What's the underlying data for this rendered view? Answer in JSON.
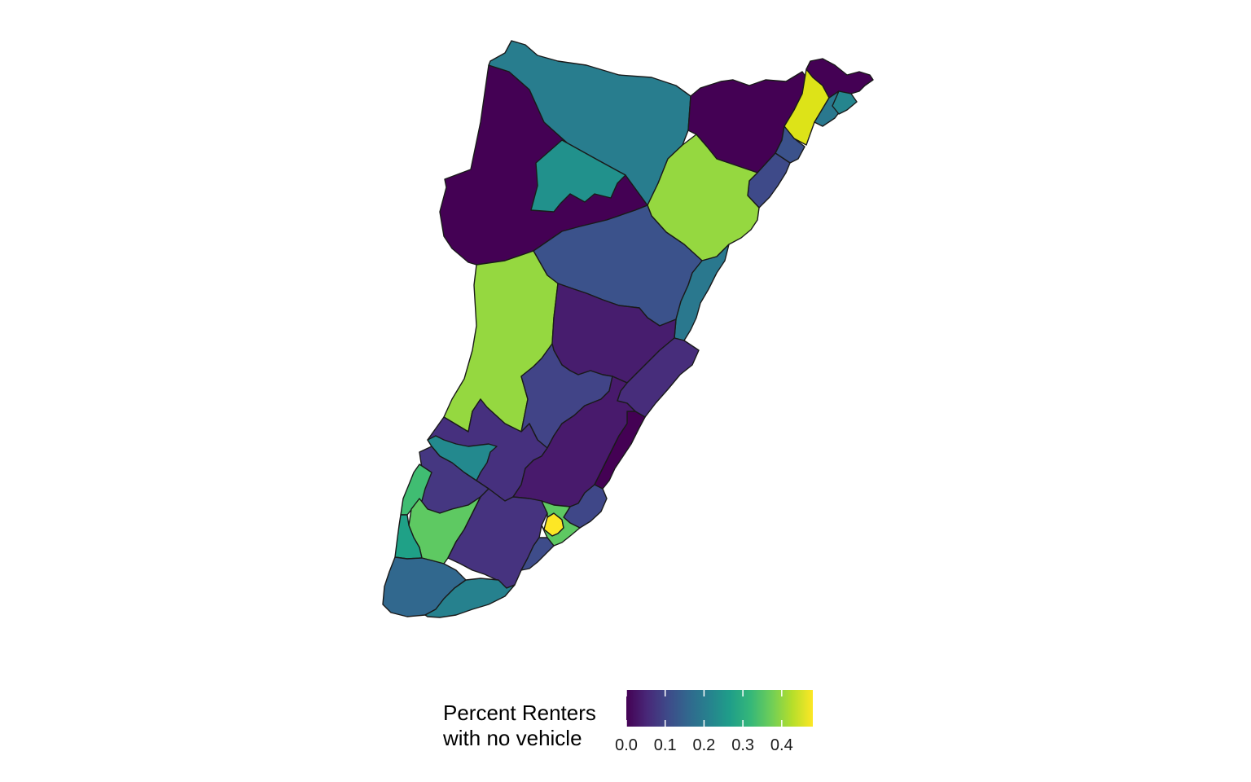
{
  "legend": {
    "title_line1": "Percent Renters",
    "title_line2": "with no vehicle",
    "ticks": [
      "0.0",
      "0.1",
      "0.2",
      "0.3",
      "0.4"
    ],
    "tick_values": [
      0.0,
      0.1,
      0.2,
      0.3,
      0.4
    ],
    "range": [
      0.0,
      0.48
    ],
    "palette": "viridis",
    "colors": [
      "#440154",
      "#482878",
      "#3e4a89",
      "#31688e",
      "#26828e",
      "#1f9e89",
      "#35b779",
      "#6ece58",
      "#b5de2b",
      "#fde725"
    ]
  },
  "tracts": [
    {
      "id": "north-west",
      "value": 0.0,
      "color": "#440154"
    },
    {
      "id": "north-center",
      "value": 0.2,
      "color": "#287d8e"
    },
    {
      "id": "north-inner",
      "value": 0.26,
      "color": "#21918c"
    },
    {
      "id": "north-east-1",
      "value": 0.0,
      "color": "#440154"
    },
    {
      "id": "north-east-yellow",
      "value": 0.47,
      "color": "#dde318"
    },
    {
      "id": "northeast-tip",
      "value": 0.0,
      "color": "#440154"
    },
    {
      "id": "northeast-coast-a",
      "value": 0.2,
      "color": "#2a788e"
    },
    {
      "id": "northeast-coast-b",
      "value": 0.24,
      "color": "#25858e"
    },
    {
      "id": "east-coast-1",
      "value": 0.12,
      "color": "#3b528b"
    },
    {
      "id": "east-coast-2",
      "value": 0.15,
      "color": "#3e4a89"
    },
    {
      "id": "east-green",
      "value": 0.38,
      "color": "#95d840"
    },
    {
      "id": "central-blue",
      "value": 0.14,
      "color": "#3b528b"
    },
    {
      "id": "east-coast-3",
      "value": 0.2,
      "color": "#2a788e"
    },
    {
      "id": "west-green",
      "value": 0.38,
      "color": "#95d840"
    },
    {
      "id": "central-purple",
      "value": 0.05,
      "color": "#471d6e"
    },
    {
      "id": "central-blue-2",
      "value": 0.11,
      "color": "#414487"
    },
    {
      "id": "east-coast-4",
      "value": 0.08,
      "color": "#472d7b"
    },
    {
      "id": "south-purple-a",
      "value": 0.07,
      "color": "#46307e"
    },
    {
      "id": "south-purple-b",
      "value": 0.05,
      "color": "#481a6c"
    },
    {
      "id": "coast-dark",
      "value": 0.0,
      "color": "#440154"
    },
    {
      "id": "sw-teal",
      "value": 0.22,
      "color": "#23898e"
    },
    {
      "id": "sw-purple",
      "value": 0.08,
      "color": "#453781"
    },
    {
      "id": "sw-green-strip",
      "value": 0.31,
      "color": "#40bd72"
    },
    {
      "id": "sw-green",
      "value": 0.34,
      "color": "#5ec962"
    },
    {
      "id": "sw-teal-2",
      "value": 0.26,
      "color": "#1fa187"
    },
    {
      "id": "south-purple-c",
      "value": 0.08,
      "color": "#46337f"
    },
    {
      "id": "south-coast-blue",
      "value": 0.13,
      "color": "#3f4788"
    },
    {
      "id": "south-yellow",
      "value": 0.48,
      "color": "#fde725"
    },
    {
      "id": "south-green",
      "value": 0.34,
      "color": "#5ec962"
    },
    {
      "id": "south-blue",
      "value": 0.12,
      "color": "#3e4c8a"
    },
    {
      "id": "tip-blue",
      "value": 0.18,
      "color": "#31688e"
    },
    {
      "id": "tip-teal",
      "value": 0.22,
      "color": "#26818e"
    }
  ]
}
